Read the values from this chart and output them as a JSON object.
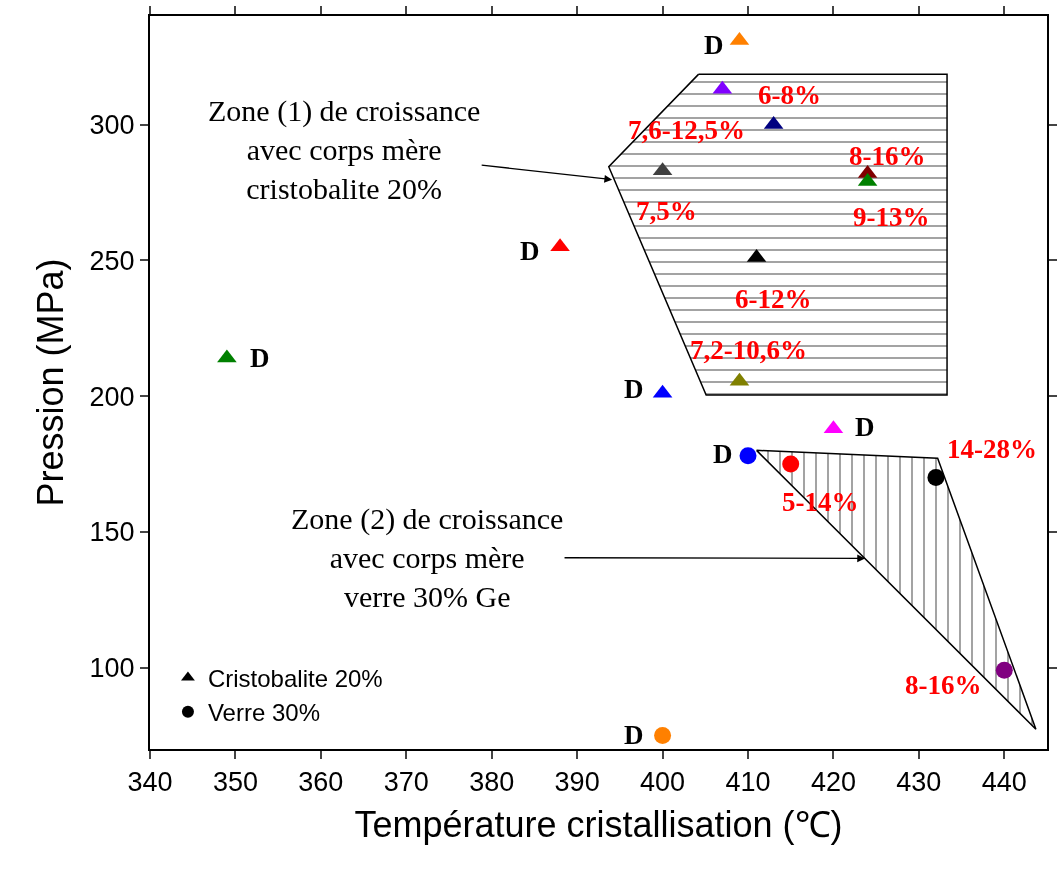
{
  "chart_data": {
    "type": "scatter",
    "xlabel": "Température cristallisation (℃)",
    "ylabel": "Pression (MPa)",
    "xlim": [
      340,
      445
    ],
    "xticks": [
      340,
      350,
      360,
      370,
      380,
      390,
      400,
      410,
      420,
      430,
      440
    ],
    "ylim": [
      70,
      340
    ],
    "yticks": [
      100,
      150,
      200,
      250,
      300
    ],
    "legend": "bottom left",
    "series": [
      {
        "name": "Cristobalite 20%",
        "marker": "triangle",
        "color": "#000000",
        "x": [
          409,
          407,
          413,
          400,
          424,
          424,
          411,
          409,
          400,
          388,
          349,
          420
        ],
        "values": [
          331,
          313,
          300,
          283,
          282,
          279,
          251,
          205.5,
          201,
          255,
          214,
          188
        ],
        "colors": [
          "#ff8000",
          "#8000ff",
          "#000080",
          "#404040",
          "#800000",
          "#008000",
          "#000000",
          "#808000",
          "#0000ff",
          "#ff0000",
          "#008000",
          "#ff00ff"
        ]
      },
      {
        "name": "Verre 30%",
        "marker": "circle",
        "color": "#000000",
        "x": [
          410,
          415,
          432,
          440,
          400
        ],
        "values": [
          178,
          175,
          170,
          99,
          75
        ],
        "colors": [
          "#0000ff",
          "#ff0000",
          "#000000",
          "#800080",
          "#ff8000"
        ]
      },
      {
        "type": "area",
        "color": "#000000",
        "x": [
          404.2,
          433.3,
          433.3,
          405.1,
          393.7,
          404.2
        ],
        "values": [
          318.5,
          318.5,
          200.4,
          200.4,
          284.5,
          318.5
        ]
      },
      {
        "type": "area",
        "color": "#000000",
        "x": [
          411,
          432.2,
          443.7,
          411
        ],
        "values": [
          180,
          177.1,
          77.3,
          180
        ]
      }
    ],
    "annotations": [
      {
        "text": "Zone (1) de croissance\navec corps mère\ncristobalite 20%",
        "x": 394.1,
        "y": 279.7
      },
      {
        "text": "Zone (2) de croissance\navec corps mère\nverre 30% Ge",
        "x": 423.7,
        "y": 140.2
      },
      {
        "text": "D",
        "x": 409,
        "y": 331
      },
      {
        "text": "6-8%",
        "x": 407,
        "y": 313
      },
      {
        "text": "7,6-12,5%",
        "x": 413,
        "y": 300
      },
      {
        "text": "8-16%",
        "x": 424,
        "y": 282
      },
      {
        "text": "7,5%",
        "x": 400,
        "y": 283
      },
      {
        "text": "9-13%",
        "x": 424,
        "y": 279
      },
      {
        "text": "D",
        "x": 388,
        "y": 255
      },
      {
        "text": "6-12%",
        "x": 411,
        "y": 251
      },
      {
        "text": "7,2-10,6%",
        "x": 409,
        "y": 205.5
      },
      {
        "text": "D",
        "x": 349,
        "y": 214
      },
      {
        "text": "D",
        "x": 400,
        "y": 201
      },
      {
        "text": "D",
        "x": 420,
        "y": 188
      },
      {
        "text": "D",
        "x": 410,
        "y": 178
      },
      {
        "text": "14-28%",
        "x": 432,
        "y": 170
      },
      {
        "text": "5-14%",
        "x": 415,
        "y": 175
      },
      {
        "text": "8-16%",
        "x": 440,
        "y": 99
      },
      {
        "text": "D",
        "x": 400,
        "y": 75
      }
    ]
  }
}
